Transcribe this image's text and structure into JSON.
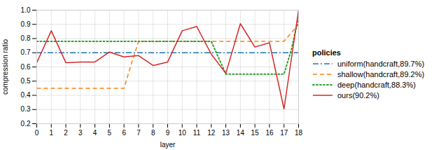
{
  "chart_data": {
    "type": "line",
    "xlabel": "layer",
    "ylabel": "compression ratio",
    "xlim": [
      0,
      18
    ],
    "ylim": [
      0.2,
      1.0
    ],
    "xticks": [
      0,
      1,
      2,
      3,
      4,
      5,
      6,
      7,
      8,
      9,
      10,
      11,
      12,
      13,
      14,
      15,
      16,
      17,
      18
    ],
    "yticks": [
      0.2,
      0.3,
      0.4,
      0.5,
      0.6,
      0.7,
      0.8,
      0.9,
      {
        "value": 1.0,
        "label": "1.0"
      }
    ],
    "grid": true,
    "legend": "right",
    "legend_title": "policies",
    "series": [
      {
        "name": "uniform(handcraft,89.7%)",
        "type": "hline",
        "color": "#1f77b4",
        "line_style": "dashdot",
        "values": [
          0.7
        ]
      },
      {
        "name": "shallow(handcraft,89.2%)",
        "type": "line",
        "color": "#ff7f0e",
        "line_style": "dashed",
        "x": [
          0,
          1,
          2,
          3,
          4,
          5,
          6,
          6.5,
          7,
          8,
          9,
          10,
          11,
          12,
          13,
          14,
          15,
          16,
          17,
          17.5,
          18
        ],
        "values": [
          0.45,
          0.45,
          0.45,
          0.45,
          0.45,
          0.45,
          0.45,
          0.62,
          0.78,
          0.78,
          0.78,
          0.78,
          0.78,
          0.78,
          0.78,
          0.78,
          0.78,
          0.78,
          0.78,
          0.84,
          0.9
        ]
      },
      {
        "name": "deep(handcraft,88.3%)",
        "type": "line",
        "color": "#2ca02c",
        "line_style": "dotted",
        "x": [
          0,
          1,
          2,
          3,
          4,
          5,
          6,
          7,
          8,
          9,
          10,
          11,
          12,
          13,
          14,
          15,
          16,
          17,
          17.5,
          18
        ],
        "values": [
          0.78,
          0.78,
          0.78,
          0.78,
          0.78,
          0.78,
          0.78,
          0.78,
          0.78,
          0.78,
          0.78,
          0.78,
          0.78,
          0.55,
          0.55,
          0.55,
          0.55,
          0.55,
          0.72,
          0.95
        ]
      },
      {
        "name": "ours(90.2%)",
        "type": "line",
        "color": "#d62728",
        "line_style": "solid",
        "x": [
          0,
          1,
          2,
          3,
          4,
          5,
          6,
          7,
          8,
          9,
          10,
          11,
          12,
          13,
          14,
          15,
          16,
          17,
          18
        ],
        "values": [
          0.63,
          0.855,
          0.63,
          0.635,
          0.635,
          0.705,
          0.67,
          0.68,
          0.61,
          0.635,
          0.855,
          0.885,
          0.69,
          0.555,
          0.905,
          0.74,
          0.77,
          0.305,
          1.0
        ]
      }
    ]
  }
}
